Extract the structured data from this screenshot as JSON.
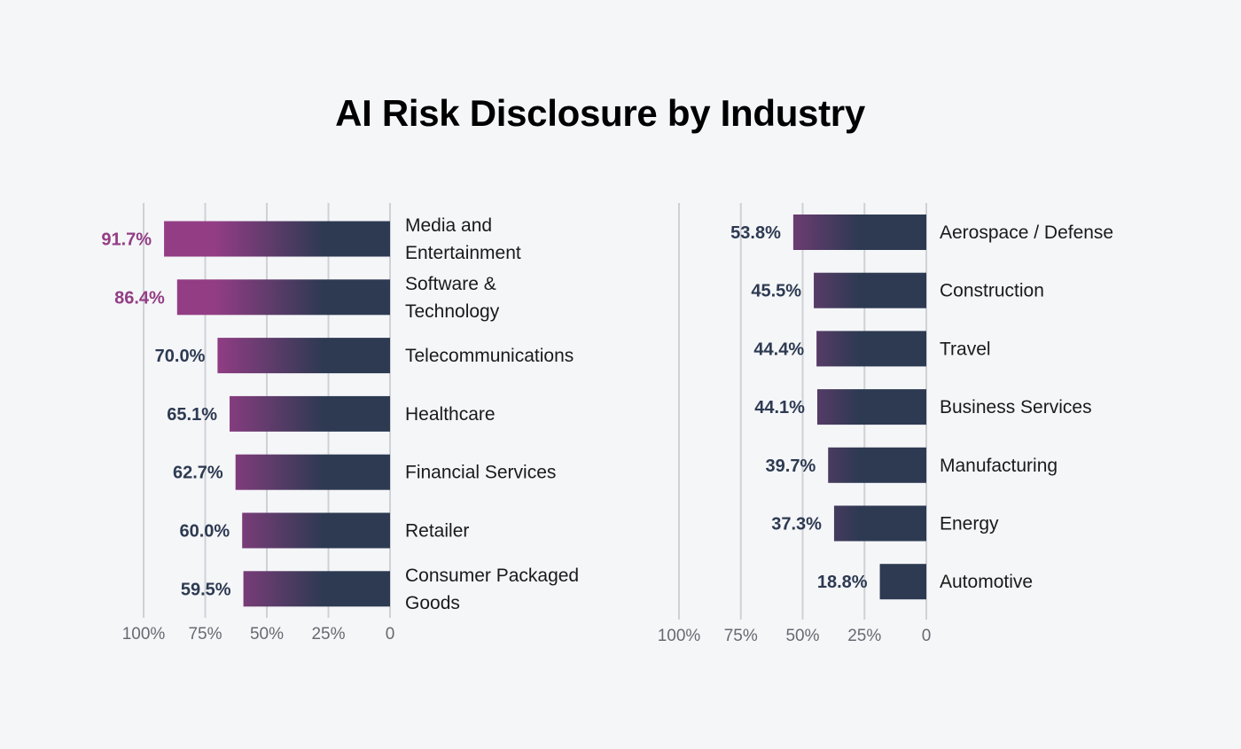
{
  "title": "AI Risk Disclosure by Industry",
  "colors": {
    "accent": "#933d85",
    "dark": "#2d3a52",
    "grid": "#cfd1d6"
  },
  "chart_data": [
    {
      "type": "bar",
      "orientation": "horizontal-reversed",
      "xlim": [
        0,
        100
      ],
      "tick_labels": [
        "100%",
        "75%",
        "50%",
        "25%",
        "0"
      ],
      "categories": [
        "Media and Entertainment",
        "Software & Technology",
        "Telecommunications",
        "Healthcare",
        "Financial Services",
        "Retailer",
        "Consumer Packaged Goods"
      ],
      "category_lines": [
        [
          "Media and",
          "Entertainment"
        ],
        [
          "Software &",
          "Technology"
        ],
        [
          "Telecommunications"
        ],
        [
          "Healthcare"
        ],
        [
          "Financial Services"
        ],
        [
          "Retailer"
        ],
        [
          "Consumer Packaged",
          "Goods"
        ]
      ],
      "values": [
        91.7,
        86.4,
        70.0,
        65.1,
        62.7,
        60.0,
        59.5
      ],
      "value_labels": [
        "91.7%",
        "86.4%",
        "70.0%",
        "65.1%",
        "62.7%",
        "60.0%",
        "59.5%"
      ],
      "grid": true
    },
    {
      "type": "bar",
      "orientation": "horizontal-reversed",
      "xlim": [
        0,
        100
      ],
      "tick_labels": [
        "100%",
        "75%",
        "50%",
        "25%",
        "0"
      ],
      "categories": [
        "Aerospace / Defense",
        "Construction",
        "Travel",
        "Business Services",
        "Manufacturing",
        "Energy",
        "Automotive"
      ],
      "category_lines": [
        [
          "Aerospace / Defense"
        ],
        [
          "Construction"
        ],
        [
          "Travel"
        ],
        [
          "Business Services"
        ],
        [
          "Manufacturing"
        ],
        [
          "Energy"
        ],
        [
          "Automotive"
        ]
      ],
      "values": [
        53.8,
        45.5,
        44.4,
        44.1,
        39.7,
        37.3,
        18.8
      ],
      "value_labels": [
        "53.8%",
        "45.5%",
        "44.4%",
        "44.1%",
        "39.7%",
        "37.3%",
        "18.8%"
      ],
      "grid": true
    }
  ]
}
